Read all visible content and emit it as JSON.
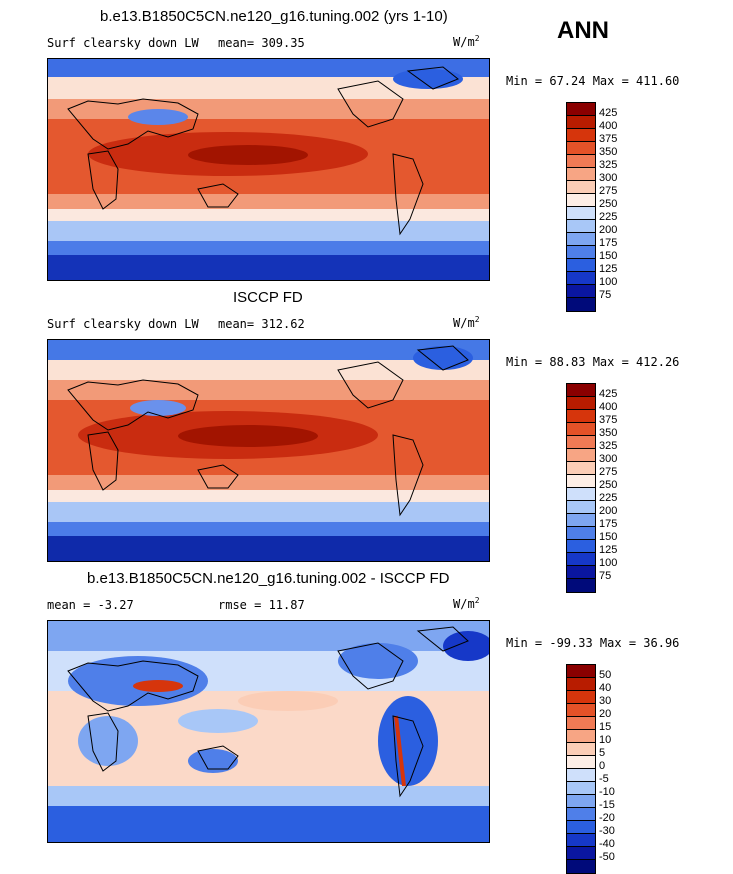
{
  "header": {
    "season": "ANN"
  },
  "panels": [
    {
      "title": "b.e13.B1850C5CN.ne120_g16.tuning.002 (yrs 1-10)",
      "variable": "Surf clearsky down LW",
      "stat": "mean=  309.35",
      "units": "W/m",
      "units_exp": "2",
      "minmax": "Min =  67.24 Max = 411.60"
    },
    {
      "title": "ISCCP FD",
      "variable": "Surf clearsky down LW",
      "stat": "mean= 312.62",
      "units": "W/m",
      "units_exp": "2",
      "minmax": "Min =  88.83 Max = 412.26"
    },
    {
      "title": "b.e13.B1850C5CN.ne120_g16.tuning.002 - ISCCP FD",
      "stat_left": "mean =  -3.27",
      "stat_right": "rmse =  11.87",
      "units": "W/m",
      "units_exp": "2",
      "minmax": "Min = -99.33 Max =  36.96"
    }
  ],
  "chart_data": [
    {
      "type": "heatmap",
      "title": "b.e13.B1850C5CN.ne120_g16.tuning.002 (yrs 1-10)",
      "field": "Surf clearsky down LW",
      "mean": 309.35,
      "min": 67.24,
      "max": 411.6,
      "units": "W/m2",
      "levels": [
        425,
        400,
        375,
        350,
        325,
        300,
        275,
        250,
        225,
        200,
        175,
        150,
        125,
        100,
        75
      ],
      "colors": [
        "#8a0000",
        "#b81c00",
        "#d6350c",
        "#e45228",
        "#f07a55",
        "#f7a584",
        "#fbcdb6",
        "#fdeee6",
        "#cfe0fb",
        "#a8c7f7",
        "#7ea6f1",
        "#4f7fe9",
        "#2b5fe0",
        "#1638c8",
        "#0a16a0",
        "#000a7a"
      ]
    },
    {
      "type": "heatmap",
      "title": "ISCCP FD",
      "field": "Surf clearsky down LW",
      "mean": 312.62,
      "min": 88.83,
      "max": 412.26,
      "units": "W/m2",
      "levels": [
        425,
        400,
        375,
        350,
        325,
        300,
        275,
        250,
        225,
        200,
        175,
        150,
        125,
        100,
        75
      ],
      "colors": [
        "#8a0000",
        "#b81c00",
        "#d6350c",
        "#e45228",
        "#f07a55",
        "#f7a584",
        "#fbcdb6",
        "#fdeee6",
        "#cfe0fb",
        "#a8c7f7",
        "#7ea6f1",
        "#4f7fe9",
        "#2b5fe0",
        "#1638c8",
        "#0a16a0",
        "#000a7a"
      ]
    },
    {
      "type": "heatmap",
      "title": "b.e13.B1850C5CN.ne120_g16.tuning.002 - ISCCP FD",
      "field": "difference",
      "mean": -3.27,
      "rmse": 11.87,
      "min": -99.33,
      "max": 36.96,
      "units": "W/m2",
      "levels": [
        50,
        40,
        30,
        20,
        15,
        10,
        5,
        0,
        -5,
        -10,
        -15,
        -20,
        -30,
        -40,
        -50
      ],
      "colors": [
        "#8a0000",
        "#b81c00",
        "#d6350c",
        "#e45228",
        "#f07a55",
        "#f7a584",
        "#fbcdb6",
        "#fdeee6",
        "#cfe0fb",
        "#a8c7f7",
        "#7ea6f1",
        "#4f7fe9",
        "#2b5fe0",
        "#1638c8",
        "#0a16a0",
        "#000a7a"
      ]
    }
  ]
}
